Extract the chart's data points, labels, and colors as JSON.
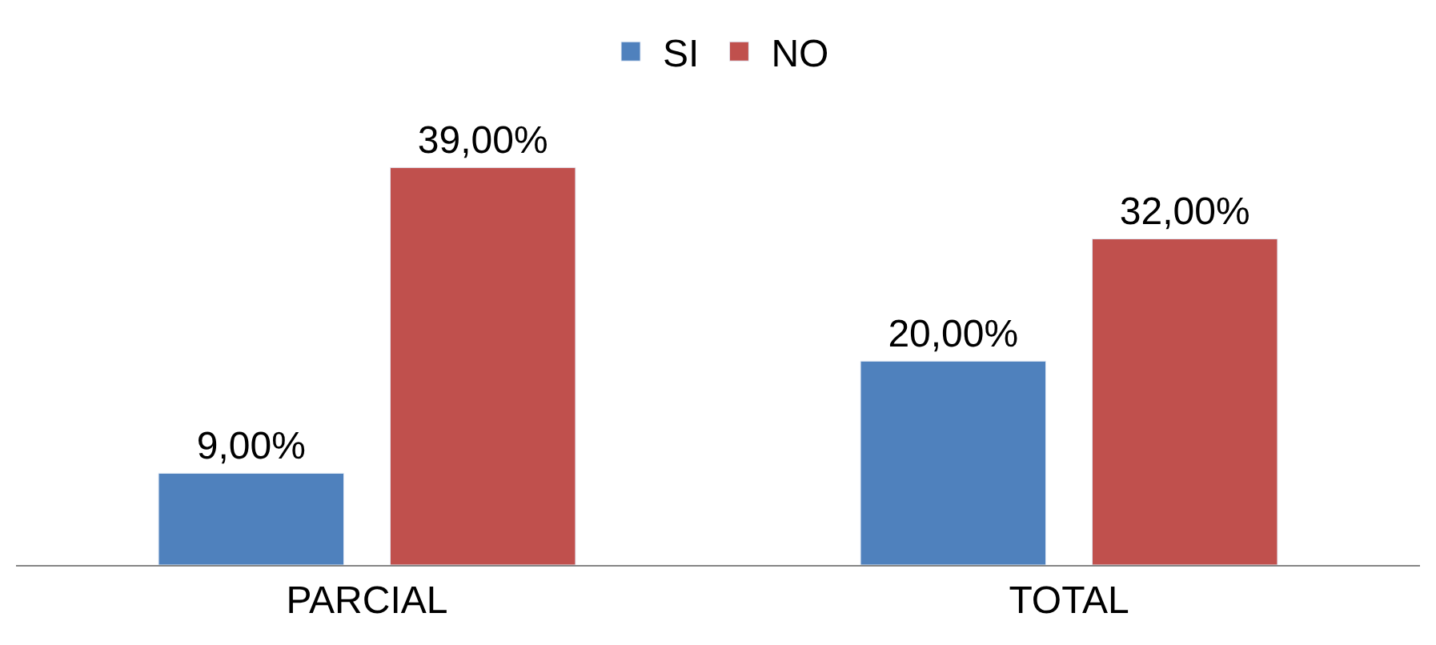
{
  "chart_data": {
    "type": "bar",
    "categories": [
      "PARCIAL",
      "TOTAL"
    ],
    "series": [
      {
        "name": "SI",
        "color": "#4f81bd",
        "values": [
          9,
          20
        ],
        "value_labels": [
          "9,00%",
          "20,00%"
        ]
      },
      {
        "name": "NO",
        "color": "#c0504d",
        "values": [
          39,
          32
        ],
        "value_labels": [
          "39,00%",
          "32,00%"
        ]
      }
    ],
    "legend": "top"
  }
}
